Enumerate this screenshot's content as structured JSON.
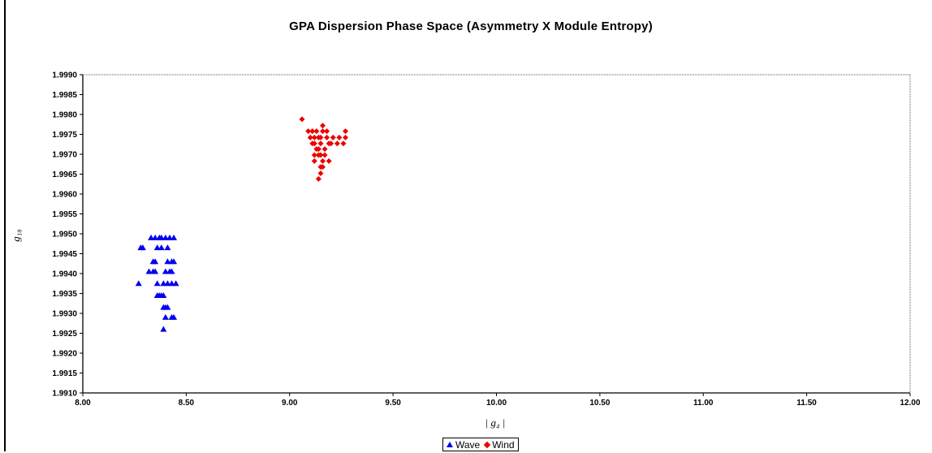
{
  "chart_data": {
    "type": "scatter",
    "title": "GPA Dispersion Phase Space (Asymmetry X Module Entropy)",
    "xlabel": "| g₄ |",
    "ylabel": "g₁₈",
    "xlim": [
      8.0,
      12.0
    ],
    "ylim": [
      1.991,
      1.999
    ],
    "x_ticks": [
      "8.00",
      "8.50",
      "9.00",
      "9.50",
      "10.00",
      "10.50",
      "11.00",
      "11.50",
      "12.00"
    ],
    "y_ticks": [
      "1.9910",
      "1.9915",
      "1.9920",
      "1.9925",
      "1.9930",
      "1.9935",
      "1.9940",
      "1.9945",
      "1.9950",
      "1.9955",
      "1.9960",
      "1.9965",
      "1.9970",
      "1.9975",
      "1.9980",
      "1.9985",
      "1.9990",
      "1.9995"
    ],
    "grid": false,
    "legend_position": "bottom",
    "series": [
      {
        "name": "Wave",
        "marker": "triangle",
        "color": "#0000ee",
        "points": [
          [
            8.33,
            1.9949
          ],
          [
            8.35,
            1.9949
          ],
          [
            8.37,
            1.9949
          ],
          [
            8.38,
            1.9949
          ],
          [
            8.4,
            1.9949
          ],
          [
            8.42,
            1.9949
          ],
          [
            8.44,
            1.9949
          ],
          [
            8.28,
            1.99465
          ],
          [
            8.29,
            1.99465
          ],
          [
            8.36,
            1.99465
          ],
          [
            8.38,
            1.99465
          ],
          [
            8.41,
            1.99465
          ],
          [
            8.34,
            1.9943
          ],
          [
            8.35,
            1.9943
          ],
          [
            8.41,
            1.9943
          ],
          [
            8.43,
            1.9943
          ],
          [
            8.44,
            1.9943
          ],
          [
            8.32,
            1.99405
          ],
          [
            8.34,
            1.99405
          ],
          [
            8.35,
            1.99405
          ],
          [
            8.4,
            1.99405
          ],
          [
            8.42,
            1.99405
          ],
          [
            8.43,
            1.99405
          ],
          [
            8.27,
            1.99375
          ],
          [
            8.36,
            1.99375
          ],
          [
            8.39,
            1.99375
          ],
          [
            8.41,
            1.99375
          ],
          [
            8.43,
            1.99375
          ],
          [
            8.45,
            1.99375
          ],
          [
            8.36,
            1.99345
          ],
          [
            8.37,
            1.99345
          ],
          [
            8.38,
            1.99345
          ],
          [
            8.39,
            1.99345
          ],
          [
            8.39,
            1.99315
          ],
          [
            8.4,
            1.99315
          ],
          [
            8.41,
            1.99315
          ],
          [
            8.4,
            1.9929
          ],
          [
            8.43,
            1.9929
          ],
          [
            8.44,
            1.9929
          ],
          [
            8.39,
            1.9926
          ]
        ]
      },
      {
        "name": "Wind",
        "marker": "diamond",
        "color": "#ee0000",
        "points": [
          [
            9.06,
            1.99788
          ],
          [
            9.16,
            1.99772
          ],
          [
            9.09,
            1.99758
          ],
          [
            9.11,
            1.99758
          ],
          [
            9.13,
            1.99758
          ],
          [
            9.16,
            1.99758
          ],
          [
            9.18,
            1.99758
          ],
          [
            9.27,
            1.99758
          ],
          [
            9.1,
            1.99742
          ],
          [
            9.12,
            1.99742
          ],
          [
            9.14,
            1.99742
          ],
          [
            9.15,
            1.99742
          ],
          [
            9.18,
            1.99742
          ],
          [
            9.21,
            1.99742
          ],
          [
            9.24,
            1.99742
          ],
          [
            9.27,
            1.99742
          ],
          [
            9.11,
            1.99727
          ],
          [
            9.12,
            1.99727
          ],
          [
            9.15,
            1.99727
          ],
          [
            9.19,
            1.99727
          ],
          [
            9.2,
            1.99727
          ],
          [
            9.23,
            1.99727
          ],
          [
            9.26,
            1.99727
          ],
          [
            9.13,
            1.99713
          ],
          [
            9.14,
            1.99713
          ],
          [
            9.17,
            1.99713
          ],
          [
            9.12,
            1.99698
          ],
          [
            9.14,
            1.99698
          ],
          [
            9.15,
            1.99698
          ],
          [
            9.17,
            1.99698
          ],
          [
            9.12,
            1.99683
          ],
          [
            9.16,
            1.99683
          ],
          [
            9.19,
            1.99683
          ],
          [
            9.15,
            1.99668
          ],
          [
            9.16,
            1.99668
          ],
          [
            9.15,
            1.99652
          ],
          [
            9.14,
            1.99638
          ]
        ]
      }
    ]
  }
}
